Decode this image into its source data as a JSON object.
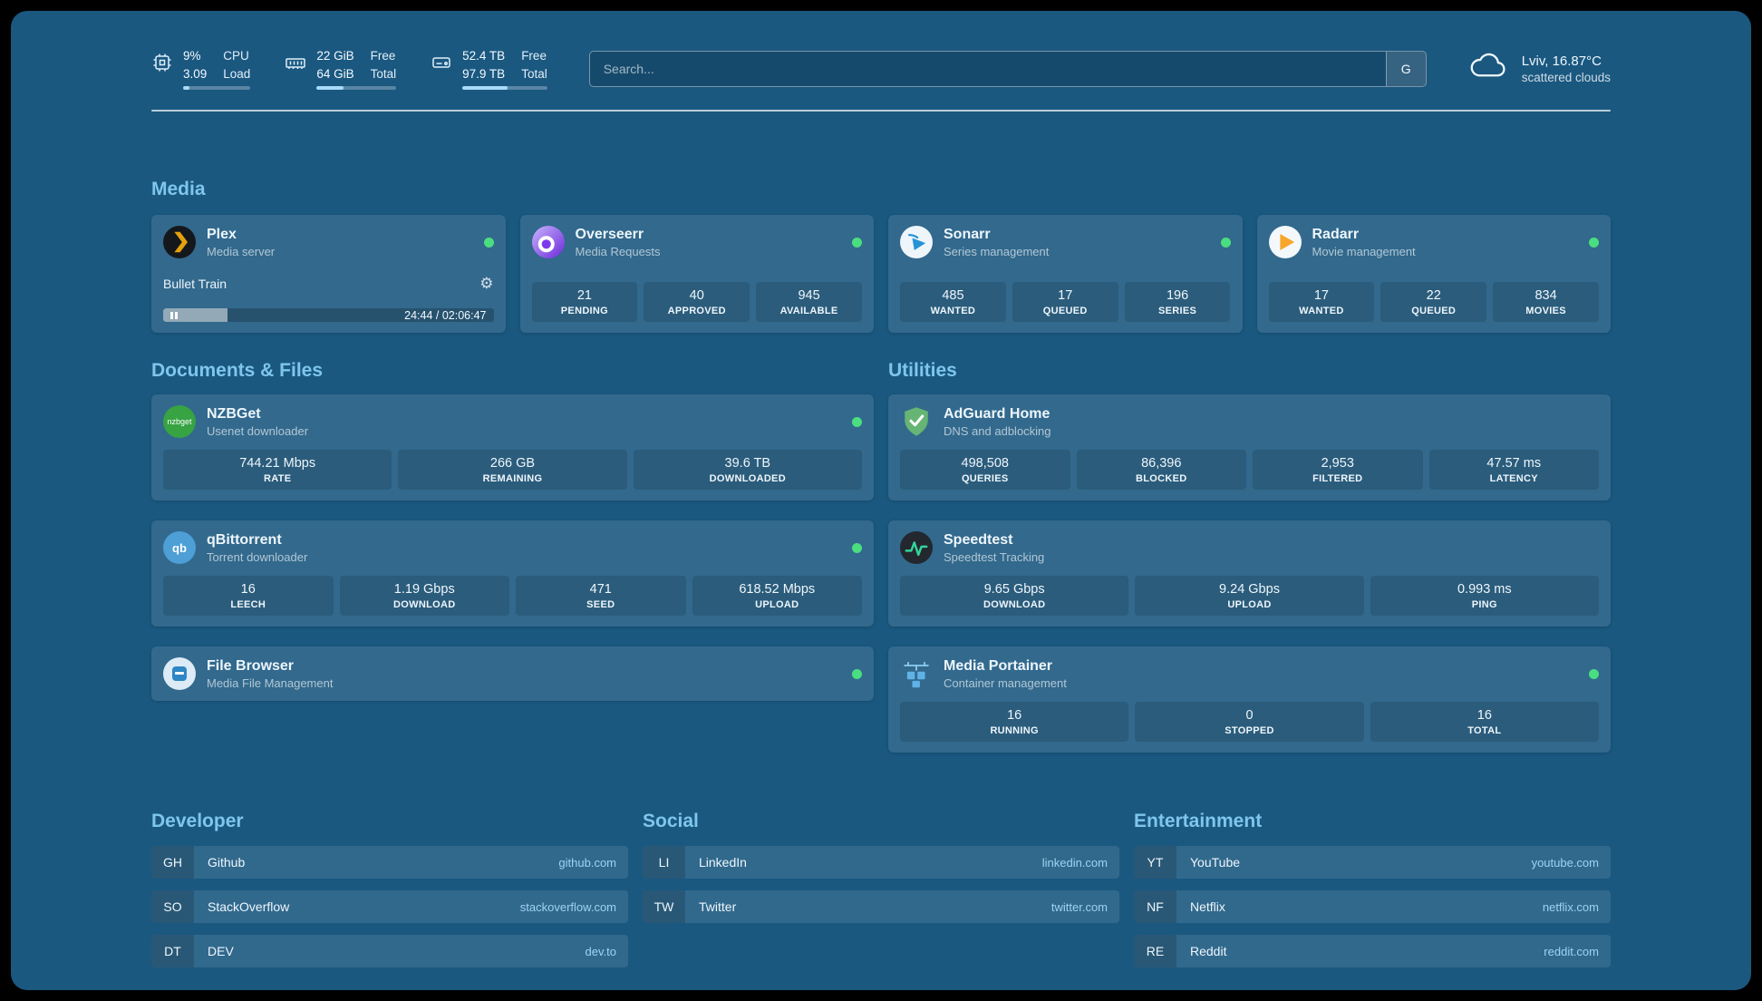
{
  "topbar": {
    "stats": [
      {
        "icon": "cpu-icon",
        "value_top": "9%",
        "value_bottom": "3.09",
        "label_top": "CPU",
        "label_bottom": "Load",
        "progress_pct": 9
      },
      {
        "icon": "memory-icon",
        "value_top": "22 GiB",
        "value_bottom": "64 GiB",
        "label_top": "Free",
        "label_bottom": "Total",
        "progress_pct": 34
      },
      {
        "icon": "disk-icon",
        "value_top": "52.4 TB",
        "value_bottom": "97.9 TB",
        "label_top": "Free",
        "label_bottom": "Total",
        "progress_pct": 53
      }
    ],
    "search": {
      "placeholder": "Search...",
      "provider_button": "G"
    },
    "weather": {
      "location": "Lviv, 16.87°C",
      "condition": "scattered clouds"
    }
  },
  "icons": {
    "gear": "⚙"
  },
  "sections": {
    "media": {
      "title": "Media",
      "plex": {
        "name": "Plex",
        "desc": "Media server",
        "now_playing": "Bullet Train",
        "time": "24:44 / 02:06:47",
        "progress_pct": 19.5
      },
      "overseerr": {
        "name": "Overseerr",
        "desc": "Media Requests",
        "stats": [
          {
            "value": "21",
            "label": "PENDING"
          },
          {
            "value": "40",
            "label": "APPROVED"
          },
          {
            "value": "945",
            "label": "AVAILABLE"
          }
        ]
      },
      "sonarr": {
        "name": "Sonarr",
        "desc": "Series management",
        "stats": [
          {
            "value": "485",
            "label": "WANTED"
          },
          {
            "value": "17",
            "label": "QUEUED"
          },
          {
            "value": "196",
            "label": "SERIES"
          }
        ]
      },
      "radarr": {
        "name": "Radarr",
        "desc": "Movie management",
        "stats": [
          {
            "value": "17",
            "label": "WANTED"
          },
          {
            "value": "22",
            "label": "QUEUED"
          },
          {
            "value": "834",
            "label": "MOVIES"
          }
        ]
      }
    },
    "documents": {
      "title": "Documents & Files",
      "nzbget": {
        "name": "NZBGet",
        "desc": "Usenet downloader",
        "icon_text": "nzbget",
        "stats": [
          {
            "value": "744.21 Mbps",
            "label": "RATE"
          },
          {
            "value": "266 GB",
            "label": "REMAINING"
          },
          {
            "value": "39.6 TB",
            "label": "DOWNLOADED"
          }
        ]
      },
      "qbittorrent": {
        "name": "qBittorrent",
        "desc": "Torrent downloader",
        "icon_text": "qb",
        "stats": [
          {
            "value": "16",
            "label": "LEECH"
          },
          {
            "value": "1.19 Gbps",
            "label": "DOWNLOAD"
          },
          {
            "value": "471",
            "label": "SEED"
          },
          {
            "value": "618.52 Mbps",
            "label": "UPLOAD"
          }
        ]
      },
      "filebrowser": {
        "name": "File Browser",
        "desc": "Media File Management"
      }
    },
    "utilities": {
      "title": "Utilities",
      "adguard": {
        "name": "AdGuard Home",
        "desc": "DNS and adblocking",
        "stats": [
          {
            "value": "498,508",
            "label": "QUERIES"
          },
          {
            "value": "86,396",
            "label": "BLOCKED"
          },
          {
            "value": "2,953",
            "label": "FILTERED"
          },
          {
            "value": "47.57 ms",
            "label": "LATENCY"
          }
        ]
      },
      "speedtest": {
        "name": "Speedtest",
        "desc": "Speedtest Tracking",
        "stats": [
          {
            "value": "9.65 Gbps",
            "label": "DOWNLOAD"
          },
          {
            "value": "9.24 Gbps",
            "label": "UPLOAD"
          },
          {
            "value": "0.993 ms",
            "label": "PING"
          }
        ]
      },
      "portainer": {
        "name": "Media Portainer",
        "desc": "Container management",
        "stats": [
          {
            "value": "16",
            "label": "RUNNING"
          },
          {
            "value": "0",
            "label": "STOPPED"
          },
          {
            "value": "16",
            "label": "TOTAL"
          }
        ]
      }
    },
    "bookmarks": [
      {
        "title": "Developer",
        "links": [
          {
            "abbr": "GH",
            "name": "Github",
            "domain": "github.com"
          },
          {
            "abbr": "SO",
            "name": "StackOverflow",
            "domain": "stackoverflow.com"
          },
          {
            "abbr": "DT",
            "name": "DEV",
            "domain": "dev.to"
          }
        ]
      },
      {
        "title": "Social",
        "links": [
          {
            "abbr": "LI",
            "name": "LinkedIn",
            "domain": "linkedin.com"
          },
          {
            "abbr": "TW",
            "name": "Twitter",
            "domain": "twitter.com"
          }
        ]
      },
      {
        "title": "Entertainment",
        "links": [
          {
            "abbr": "YT",
            "name": "YouTube",
            "domain": "youtube.com"
          },
          {
            "abbr": "NF",
            "name": "Netflix",
            "domain": "netflix.com"
          },
          {
            "abbr": "RE",
            "name": "Reddit",
            "domain": "reddit.com"
          }
        ]
      }
    ]
  },
  "colors": {
    "background": "#1a5880",
    "heading": "#7fc6eb",
    "status_ok": "#4ade80",
    "link": "#9ed2f2"
  }
}
